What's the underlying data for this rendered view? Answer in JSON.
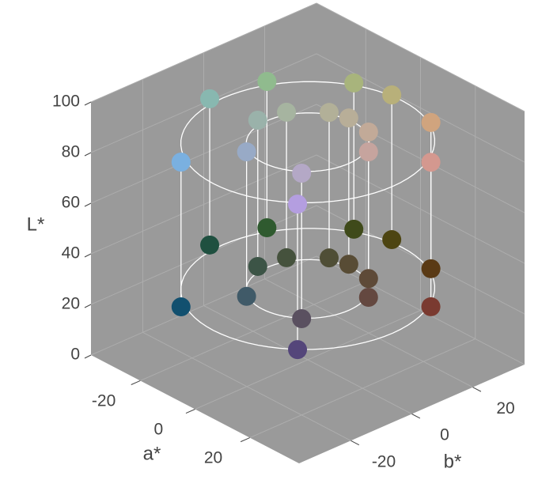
{
  "chart_data": {
    "type": "scatter3d",
    "xlabel": "a*",
    "ylabel": "b*",
    "zlabel": "L*",
    "xlim": [
      -38,
      38
    ],
    "ylim": [
      -37,
      37
    ],
    "zlim": [
      0,
      100
    ],
    "xticks": [
      -20,
      0,
      20
    ],
    "yticks": [
      -20,
      0,
      20
    ],
    "zticks": [
      0,
      20,
      40,
      60,
      80,
      100
    ],
    "grid": true,
    "rings": {
      "radius": [
        31,
        15
      ],
      "L": [
        28,
        86
      ]
    },
    "pairs": [
      {
        "a": -20.7,
        "b": -23.0,
        "L": [
          21.4,
          78.6
        ],
        "colors": [
          "#12506f",
          "#7ab0e0"
        ]
      },
      {
        "a": -30.7,
        "b": -4.6,
        "L": [
          30.5,
          88.3
        ],
        "colors": [
          "#1f5040",
          "#88b8b0"
        ]
      },
      {
        "a": -28.5,
        "b": 12.2,
        "L": [
          29.7,
          87.5
        ],
        "colors": [
          "#2f5a2f",
          "#90bb8e"
        ]
      },
      {
        "a": -14.0,
        "b": 27.7,
        "L": [
          29.1,
          86.9
        ],
        "colors": [
          "#3f4a1a",
          "#a8b47c"
        ]
      },
      {
        "a": -3.6,
        "b": 30.8,
        "L": [
          29.2,
          86.4
        ],
        "colors": [
          "#4d4512",
          "#b8b07a"
        ]
      },
      {
        "a": 14.6,
        "b": 27.3,
        "L": [
          29.8,
          87.6
        ],
        "colors": [
          "#5a3a15",
          "#d0a47e"
        ]
      },
      {
        "a": 25.6,
        "b": 17.4,
        "L": [
          26.2,
          83.3
        ],
        "colors": [
          "#7a3a30",
          "#d4988f"
        ]
      },
      {
        "a": 21.3,
        "b": -22.5,
        "L": [
          27.9,
          85.4
        ],
        "colors": [
          "#54467a",
          "#b49ee0"
        ]
      },
      {
        "a": -10.0,
        "b": -11.1,
        "L": [
          25.3,
          82.4
        ],
        "colors": [
          "#405a68",
          "#98aac6"
        ]
      },
      {
        "a": -14.7,
        "b": -3.2,
        "L": [
          30.3,
          88.1
        ],
        "colors": [
          "#3c5446",
          "#9ab2aa"
        ]
      },
      {
        "a": -13.9,
        "b": 5.5,
        "L": [
          29.6,
          87.1
        ],
        "colors": [
          "#45523d",
          "#a6b4a0"
        ]
      },
      {
        "a": -7.0,
        "b": 13.3,
        "L": [
          29.3,
          86.8
        ],
        "colors": [
          "#4f4e36",
          "#b2b098"
        ]
      },
      {
        "a": -1.6,
        "b": 14.9,
        "L": [
          29.0,
          86.8
        ],
        "colors": [
          "#584c35",
          "#b8ae98"
        ]
      },
      {
        "a": 8.4,
        "b": 12.4,
        "L": [
          30.3,
          88.2
        ],
        "colors": [
          "#5e4a38",
          "#c2aa98"
        ]
      },
      {
        "a": 11.5,
        "b": 9.6,
        "L": [
          26.1,
          83.6
        ],
        "colors": [
          "#644840",
          "#c6a49e"
        ]
      },
      {
        "a": 10.1,
        "b": -11.1,
        "L": [
          27.8,
          85.3
        ],
        "colors": [
          "#5a5060",
          "#b4a8c6"
        ]
      }
    ]
  }
}
